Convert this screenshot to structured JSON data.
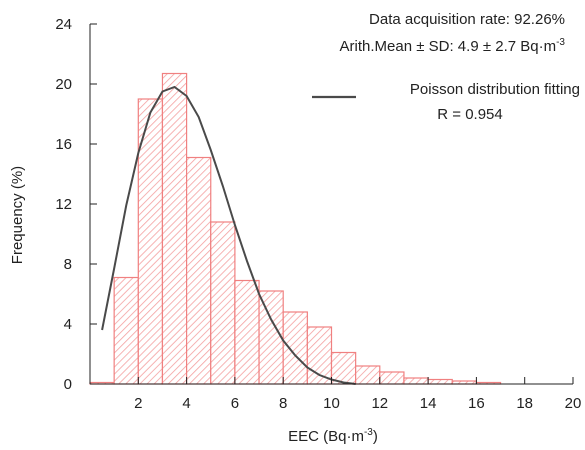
{
  "chart_data": {
    "type": "bar",
    "bin_edges": [
      0,
      1,
      2,
      3,
      4,
      5,
      6,
      7,
      8,
      9,
      10,
      11,
      12,
      13,
      14,
      15,
      16,
      17
    ],
    "values": [
      0.1,
      7.1,
      19.0,
      20.7,
      15.1,
      10.8,
      6.9,
      6.2,
      4.8,
      3.8,
      2.1,
      1.2,
      0.8,
      0.4,
      0.3,
      0.2,
      0.1
    ],
    "fit_curve": {
      "name": "Poisson distribution fitting",
      "x": [
        0.5,
        1.0,
        1.5,
        2.0,
        2.5,
        3.0,
        3.5,
        4.0,
        4.5,
        5.0,
        5.5,
        6.0,
        6.5,
        7.0,
        7.5,
        8.0,
        8.5,
        9.0,
        9.5,
        10.0,
        10.5,
        11.0
      ],
      "y": [
        3.6,
        7.7,
        11.9,
        15.4,
        18.1,
        19.5,
        19.8,
        19.2,
        17.8,
        15.6,
        13.2,
        10.6,
        8.2,
        6.0,
        4.3,
        2.9,
        1.9,
        1.1,
        0.6,
        0.3,
        0.1,
        0.0
      ]
    },
    "title": "",
    "xlabel": "EEC (Bq·m",
    "xlabel_sup": "-3",
    "xlabel_close": ")",
    "ylabel": "Frequency (%)",
    "xlim": [
      0,
      20
    ],
    "ylim": [
      0,
      24
    ],
    "xticks": [
      2,
      4,
      6,
      8,
      10,
      12,
      14,
      16,
      18,
      20
    ],
    "yticks": [
      0,
      4,
      8,
      12,
      16,
      20,
      24
    ],
    "grid": false,
    "legend": {
      "position": "top-right",
      "label": "Poisson distribution fitting",
      "r_text": "R = 0.954"
    },
    "annotations": {
      "line1": "Data acquisition rate: 92.26%",
      "line2": "Arith.Mean ± SD: 4.9 ± 2.7 Bq·m",
      "line2_sup": "-3"
    },
    "colors": {
      "bar_edge": "#f08080",
      "bar_hatch": "#f4a0a0",
      "curve": "#4a4a4a",
      "axis": "#222222"
    }
  }
}
